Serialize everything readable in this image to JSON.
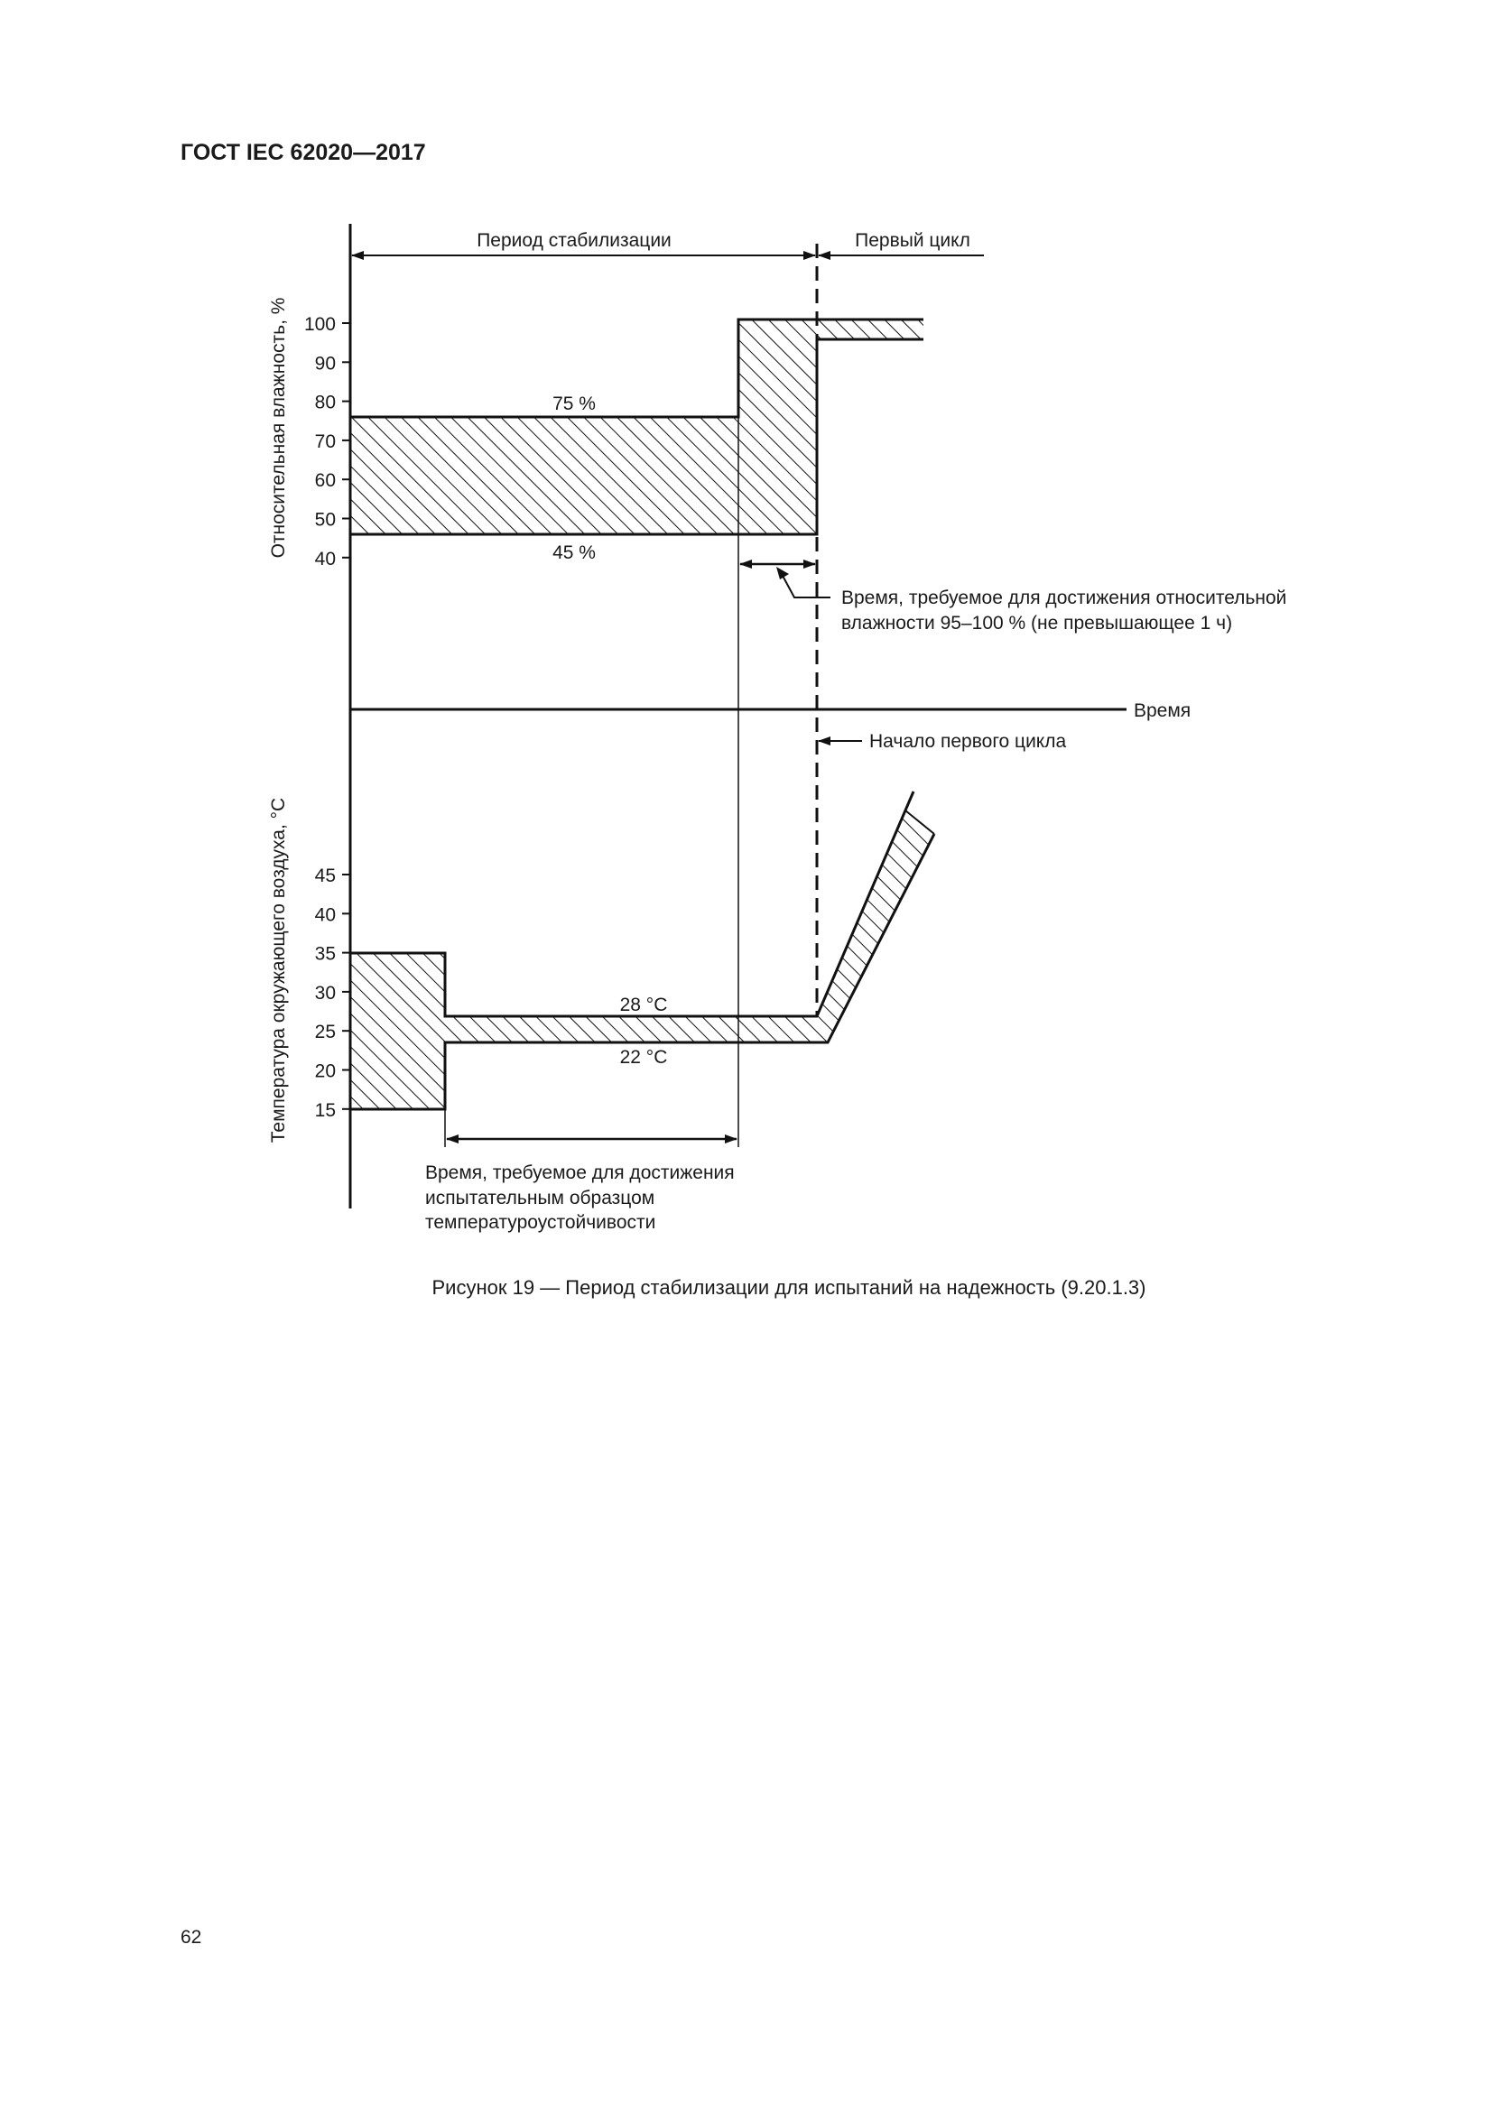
{
  "header": {
    "title": "ГОСТ IEC 62020—2017"
  },
  "figure": {
    "stabilization_period": "Период стабилизации",
    "first_cycle": "Первый цикл",
    "humidity_axis_label": "Относительная влажность, %",
    "humidity_ticks": [
      "100",
      "90",
      "80",
      "70",
      "60",
      "50",
      "40"
    ],
    "humidity_upper": "75 %",
    "humidity_lower": "45 %",
    "humidity_note_line1": "Время, требуемое для достижения относительной",
    "humidity_note_line2": "влажности 95–100 % (не превышающее 1 ч)",
    "time_axis_label": "Время",
    "first_cycle_start": "Начало первого цикла",
    "temperature_axis_label": "Температура окружающего воздуха, °С",
    "temperature_ticks": [
      "45",
      "40",
      "35",
      "30",
      "25",
      "20",
      "15"
    ],
    "temperature_upper": "28 °С",
    "temperature_lower": "22 °С",
    "temperature_note_line1": "Время, требуемое для достижения",
    "temperature_note_line2": "испытательным образцом",
    "temperature_note_line3": "температуроустойчивости",
    "hatch_color": "#111111"
  },
  "caption": "Рисунок 19 — Период стабилизации для испытаний на надежность (9.20.1.3)",
  "page_number": "62"
}
